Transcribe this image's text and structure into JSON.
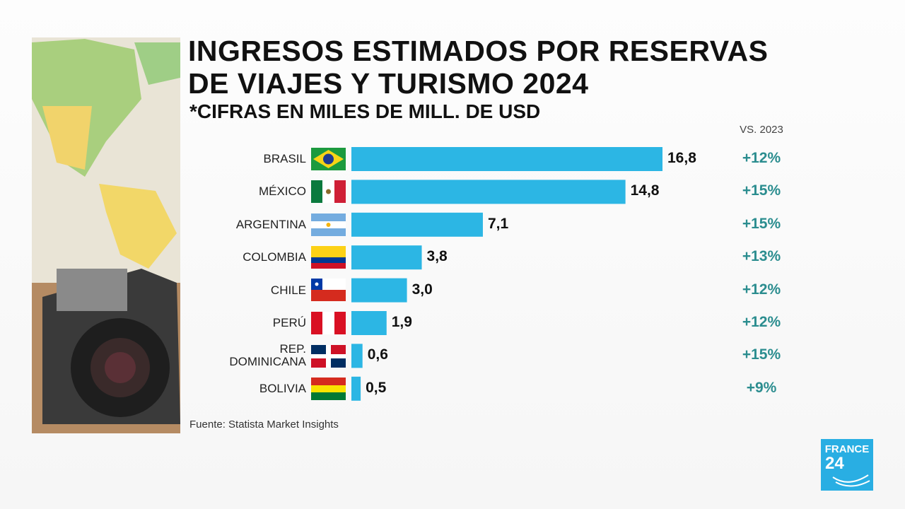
{
  "chart_data": {
    "type": "bar",
    "orientation": "horizontal",
    "title": [
      "INGRESOS ESTIMADOS POR RESERVAS",
      "DE VIAJES Y TURISMO 2024"
    ],
    "subtitle": "*CIFRAS EN MILES DE MILL. DE USD",
    "categories": [
      "BRASIL",
      "MÉXICO",
      "ARGENTINA",
      "COLOMBIA",
      "CHILE",
      "PERÚ",
      "REP. DOMINICANA",
      "BOLIVIA"
    ],
    "values": [
      16.8,
      14.8,
      7.1,
      3.8,
      3.0,
      1.9,
      0.6,
      0.5
    ],
    "value_labels": [
      "16,8",
      "14,8",
      "7,1",
      "3,8",
      "3,0",
      "1,9",
      "0,6",
      "0,5"
    ],
    "color": "#2cb6e4",
    "comparison": {
      "label": "VS. 2023",
      "values": [
        "+12%",
        "+15%",
        "+15%",
        "+13%",
        "+12%",
        "+12%",
        "+15%",
        "+9%"
      ],
      "color": "#2b8d8f"
    },
    "source": "Fuente: Statista Market Insights"
  },
  "logo": {
    "name": "FRANCE",
    "number": "24"
  }
}
